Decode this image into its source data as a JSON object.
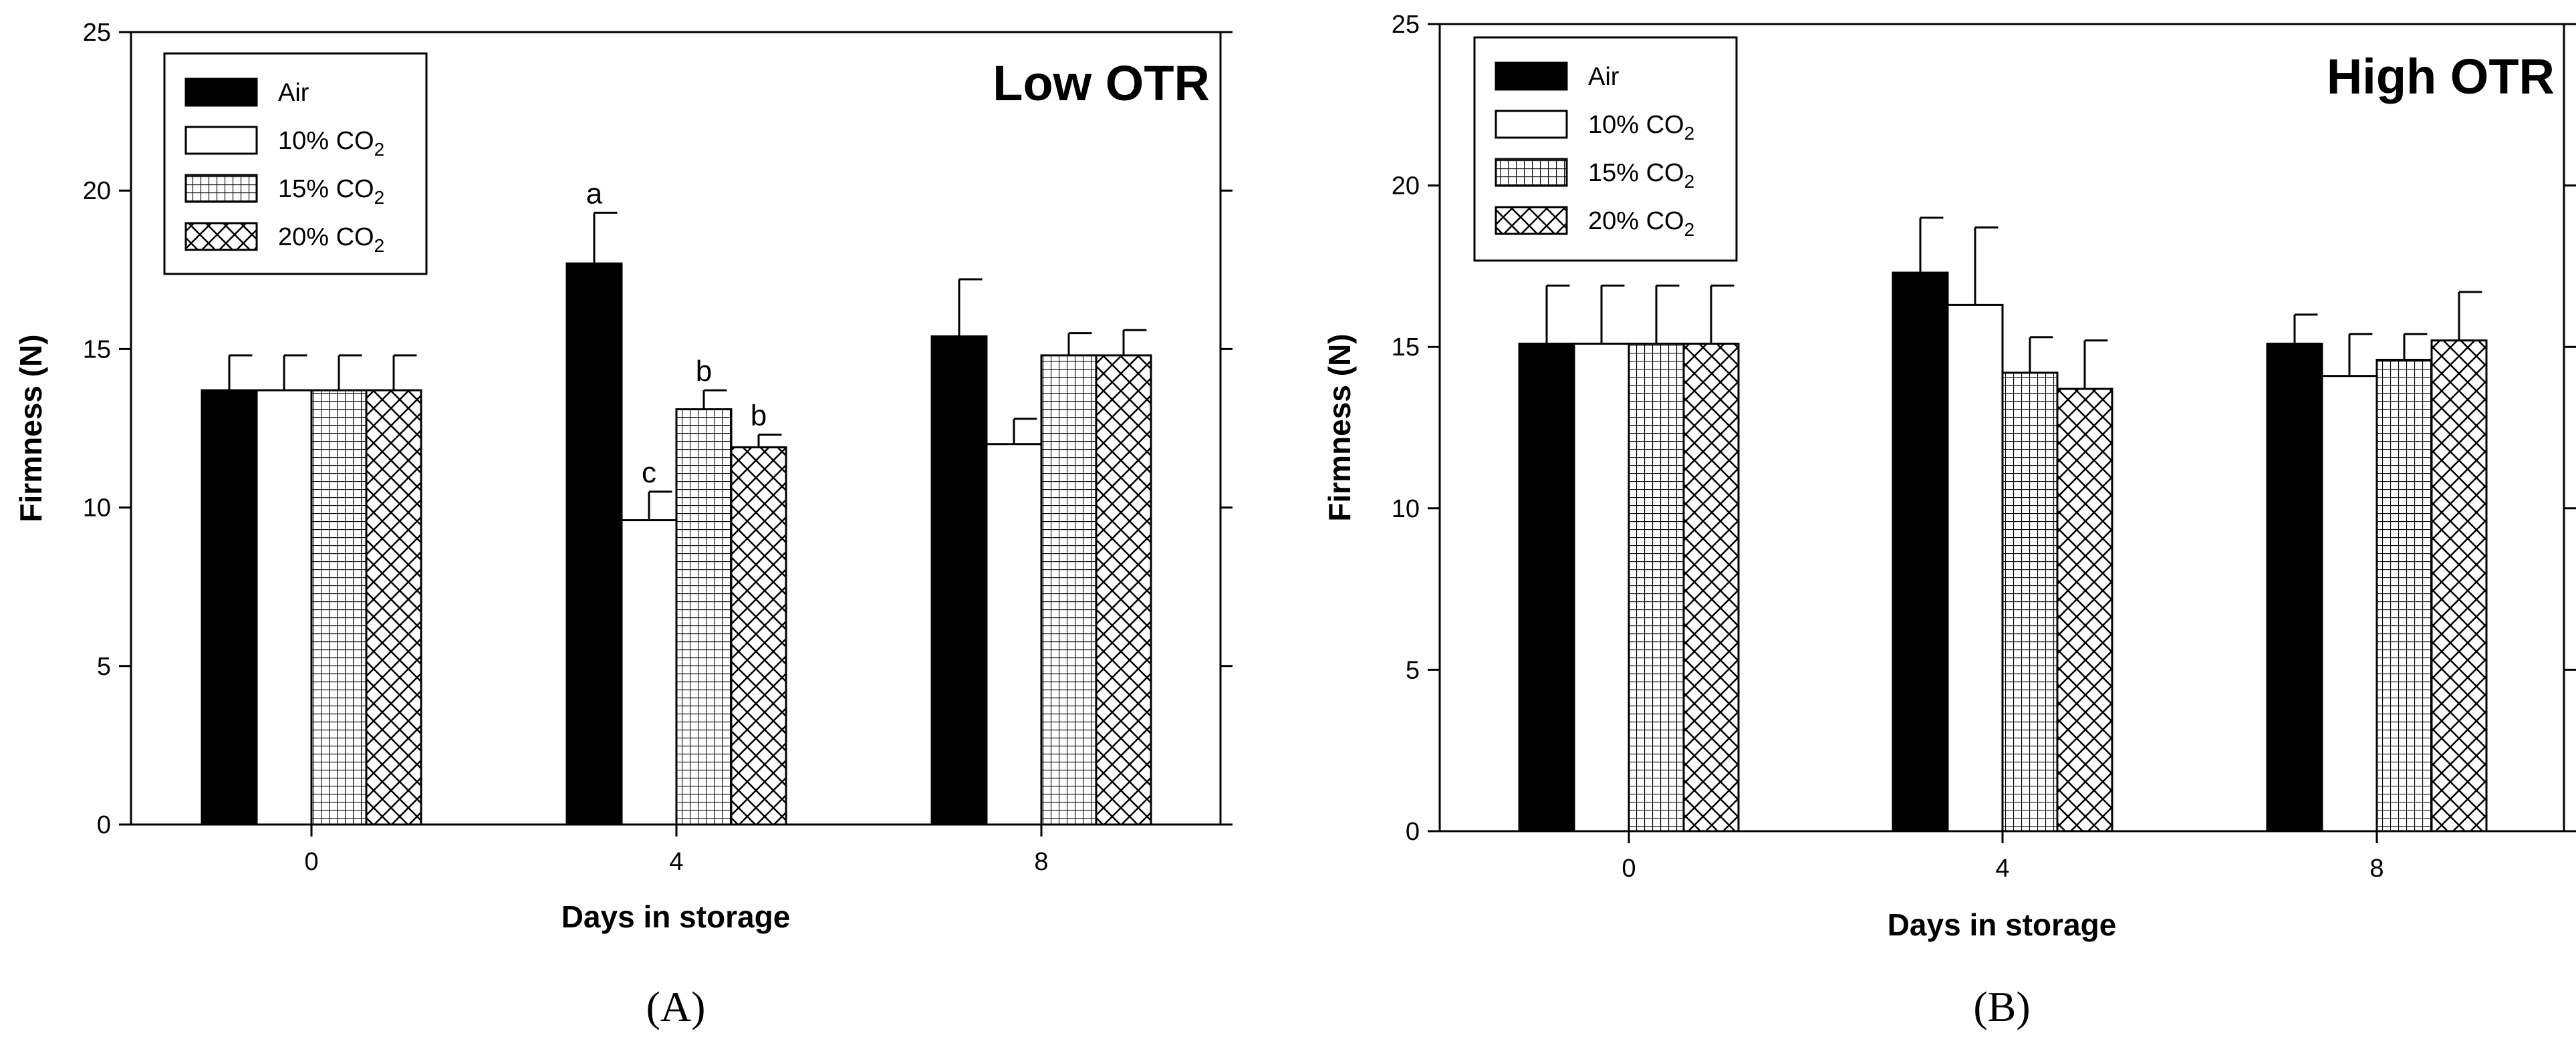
{
  "chart_data": [
    {
      "type": "bar",
      "title": "Low OTR",
      "caption": "(A)",
      "xlabel": "Days in storage",
      "ylabel": "Firmness (N)",
      "ylim": [
        0,
        25
      ],
      "yticks": [
        "0",
        "5",
        "10",
        "15",
        "20",
        "25"
      ],
      "categories": [
        "0",
        "4",
        "8"
      ],
      "legend_position": "top-left",
      "legend": [
        {
          "pre": "Air",
          "sub": "",
          "pattern": "solid"
        },
        {
          "pre": "10% CO",
          "sub": "2",
          "pattern": "white"
        },
        {
          "pre": "15% CO",
          "sub": "2",
          "pattern": "grid"
        },
        {
          "pre": "20% CO",
          "sub": "2",
          "pattern": "cross"
        }
      ],
      "series": [
        {
          "name": "Air",
          "values": [
            13.7,
            17.7,
            15.4
          ],
          "errors": [
            1.1,
            1.6,
            1.8
          ]
        },
        {
          "name": "10% CO2",
          "values": [
            13.7,
            9.6,
            12.0
          ],
          "errors": [
            1.1,
            0.9,
            0.8
          ]
        },
        {
          "name": "15% CO2",
          "values": [
            13.7,
            13.1,
            14.8
          ],
          "errors": [
            1.1,
            0.6,
            0.7
          ]
        },
        {
          "name": "20% CO2",
          "values": [
            13.7,
            11.9,
            14.8
          ],
          "errors": [
            1.1,
            0.4,
            0.8
          ]
        }
      ],
      "annotations": [
        {
          "category": 1,
          "series": 0,
          "text": "a"
        },
        {
          "category": 1,
          "series": 1,
          "text": "c"
        },
        {
          "category": 1,
          "series": 2,
          "text": "b"
        },
        {
          "category": 1,
          "series": 3,
          "text": "b"
        }
      ]
    },
    {
      "type": "bar",
      "title": "High OTR",
      "caption": "(B)",
      "xlabel": "Days in storage",
      "ylabel": "Firmness (N)",
      "ylim": [
        0,
        25
      ],
      "yticks": [
        "0",
        "5",
        "10",
        "15",
        "20",
        "25"
      ],
      "categories": [
        "0",
        "4",
        "8"
      ],
      "legend_position": "top-left",
      "legend": [
        {
          "pre": "Air",
          "sub": "",
          "pattern": "solid"
        },
        {
          "pre": "10% CO",
          "sub": "2",
          "pattern": "white"
        },
        {
          "pre": "15% CO",
          "sub": "2",
          "pattern": "grid"
        },
        {
          "pre": "20% CO",
          "sub": "2",
          "pattern": "cross"
        }
      ],
      "series": [
        {
          "name": "Air",
          "values": [
            15.1,
            17.3,
            15.1
          ],
          "errors": [
            1.8,
            1.7,
            0.9
          ]
        },
        {
          "name": "10% CO2",
          "values": [
            15.1,
            16.3,
            14.1
          ],
          "errors": [
            1.8,
            2.4,
            1.3
          ]
        },
        {
          "name": "15% CO2",
          "values": [
            15.1,
            14.2,
            14.6
          ],
          "errors": [
            1.8,
            1.1,
            0.8
          ]
        },
        {
          "name": "20% CO2",
          "values": [
            15.1,
            13.7,
            15.2
          ],
          "errors": [
            1.8,
            1.5,
            1.5
          ]
        }
      ],
      "annotations": []
    }
  ]
}
